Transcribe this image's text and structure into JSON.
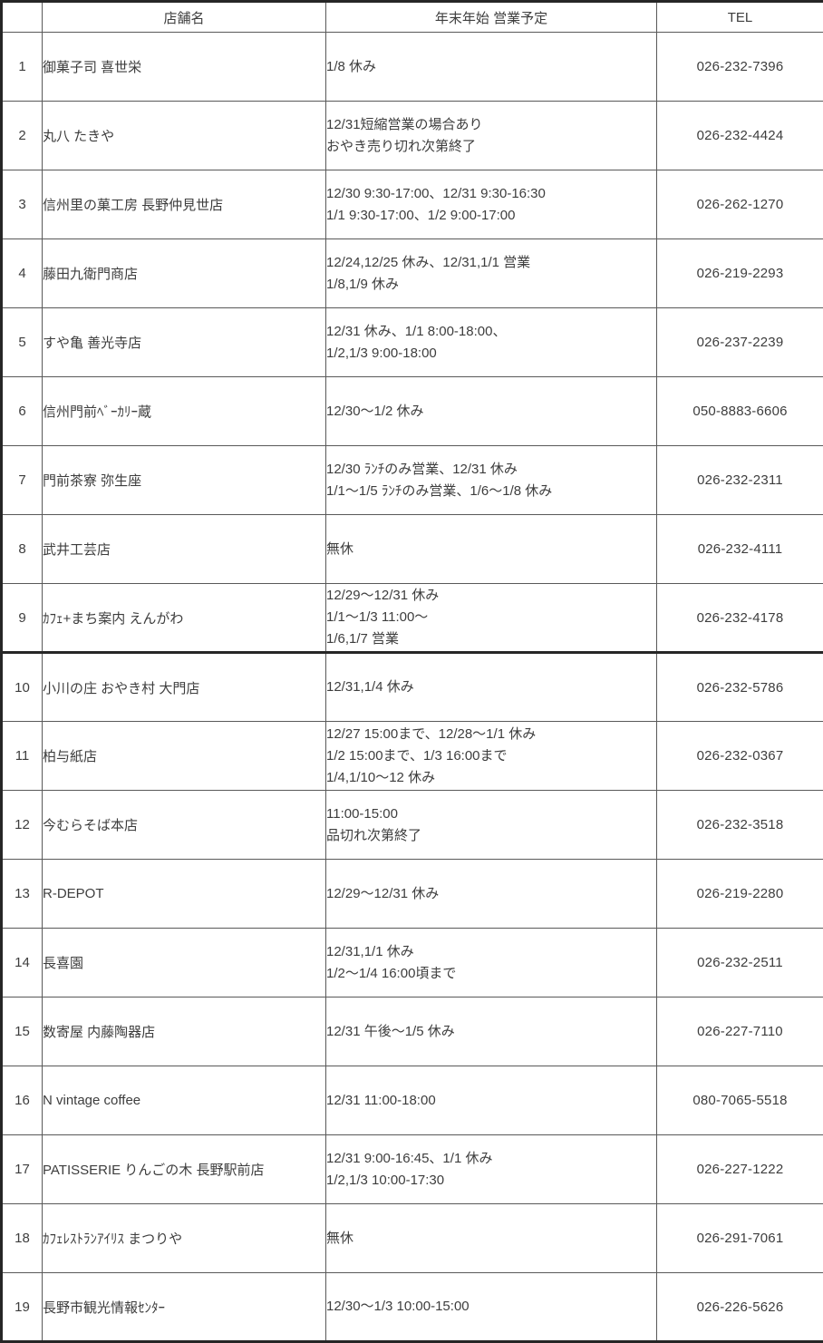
{
  "table": {
    "headers": {
      "no": "",
      "name": "店舗名",
      "schedule": "年末年始 営業予定",
      "tel": "TEL"
    },
    "rows": [
      {
        "no": "1",
        "name": "御菓子司 喜世栄",
        "schedule": [
          "1/8 休み"
        ],
        "tel": "026-232-7396"
      },
      {
        "no": "2",
        "name": "丸八 たきや",
        "schedule": [
          "12/31短縮営業の場合あり",
          "おやき売り切れ次第終了"
        ],
        "tel": "026-232-4424"
      },
      {
        "no": "3",
        "name": "信州里の菓工房 長野仲見世店",
        "schedule": [
          "12/30 9:30-17:00、12/31 9:30-16:30",
          "1/1 9:30-17:00、1/2 9:00-17:00"
        ],
        "tel": "026-262-1270"
      },
      {
        "no": "4",
        "name": "藤田九衛門商店",
        "schedule": [
          "12/24,12/25 休み、12/31,1/1 営業",
          "1/8,1/9 休み"
        ],
        "tel": "026-219-2293"
      },
      {
        "no": "5",
        "name": "すや亀 善光寺店",
        "schedule": [
          "12/31 休み、1/1 8:00-18:00、",
          "1/2,1/3 9:00-18:00"
        ],
        "tel": "026-237-2239"
      },
      {
        "no": "6",
        "name": "信州門前ﾍﾞｰｶﾘｰ蔵",
        "schedule": [
          "12/30～1/2 休み"
        ],
        "tel": "050-8883-6606"
      },
      {
        "no": "7",
        "name": "門前茶寮 弥生座",
        "schedule": [
          "12/30 ﾗﾝﾁのみ営業、12/31 休み",
          "1/1～1/5 ﾗﾝﾁのみ営業、1/6～1/8 休み"
        ],
        "tel": "026-232-2311"
      },
      {
        "no": "8",
        "name": "武井工芸店",
        "schedule": [
          "無休"
        ],
        "tel": "026-232-4111"
      },
      {
        "no": "9",
        "name": "ｶﾌｪ+まち案内 えんがわ",
        "schedule": [
          "12/29～12/31 休み",
          "1/1～1/3 11:00～",
          "1/6,1/7 営業"
        ],
        "tel": "026-232-4178",
        "divider_after": true
      },
      {
        "no": "10",
        "name": "小川の庄 おやき村 大門店",
        "schedule": [
          "12/31,1/4 休み"
        ],
        "tel": "026-232-5786"
      },
      {
        "no": "11",
        "name": "柏与紙店",
        "schedule": [
          "12/27 15:00まで、12/28～1/1 休み",
          "1/2 15:00まで、1/3 16:00まで",
          "1/4,1/10～12 休み"
        ],
        "tel": "026-232-0367"
      },
      {
        "no": "12",
        "name": "今むらそば本店",
        "schedule": [
          "11:00-15:00",
          "品切れ次第終了"
        ],
        "tel": "026-232-3518"
      },
      {
        "no": "13",
        "name": "R-DEPOT",
        "schedule": [
          "12/29～12/31 休み"
        ],
        "tel": "026-219-2280"
      },
      {
        "no": "14",
        "name": "長喜園",
        "schedule": [
          "12/31,1/1 休み",
          "1/2～1/4 16:00頃まで"
        ],
        "tel": "026-232-2511"
      },
      {
        "no": "15",
        "name": "数寄屋 内藤陶器店",
        "schedule": [
          "12/31 午後～1/5 休み"
        ],
        "tel": "026-227-7110"
      },
      {
        "no": "16",
        "name": "N vintage coffee",
        "schedule": [
          "12/31 11:00-18:00"
        ],
        "tel": "080-7065-5518"
      },
      {
        "no": "17",
        "name": "PATISSERIE りんごの木 長野駅前店",
        "schedule": [
          "12/31 9:00-16:45、1/1 休み",
          "1/2,1/3 10:00-17:30"
        ],
        "tel": "026-227-1222"
      },
      {
        "no": "18",
        "name": "ｶﾌｪﾚｽﾄﾗﾝｱｲﾘｽ まつりや",
        "schedule": [
          "無休"
        ],
        "tel": "026-291-7061"
      },
      {
        "no": "19",
        "name": "長野市観光情報ｾﾝﾀｰ",
        "schedule": [
          "12/30～1/3 10:00-15:00"
        ],
        "tel": "026-226-5626"
      }
    ]
  }
}
